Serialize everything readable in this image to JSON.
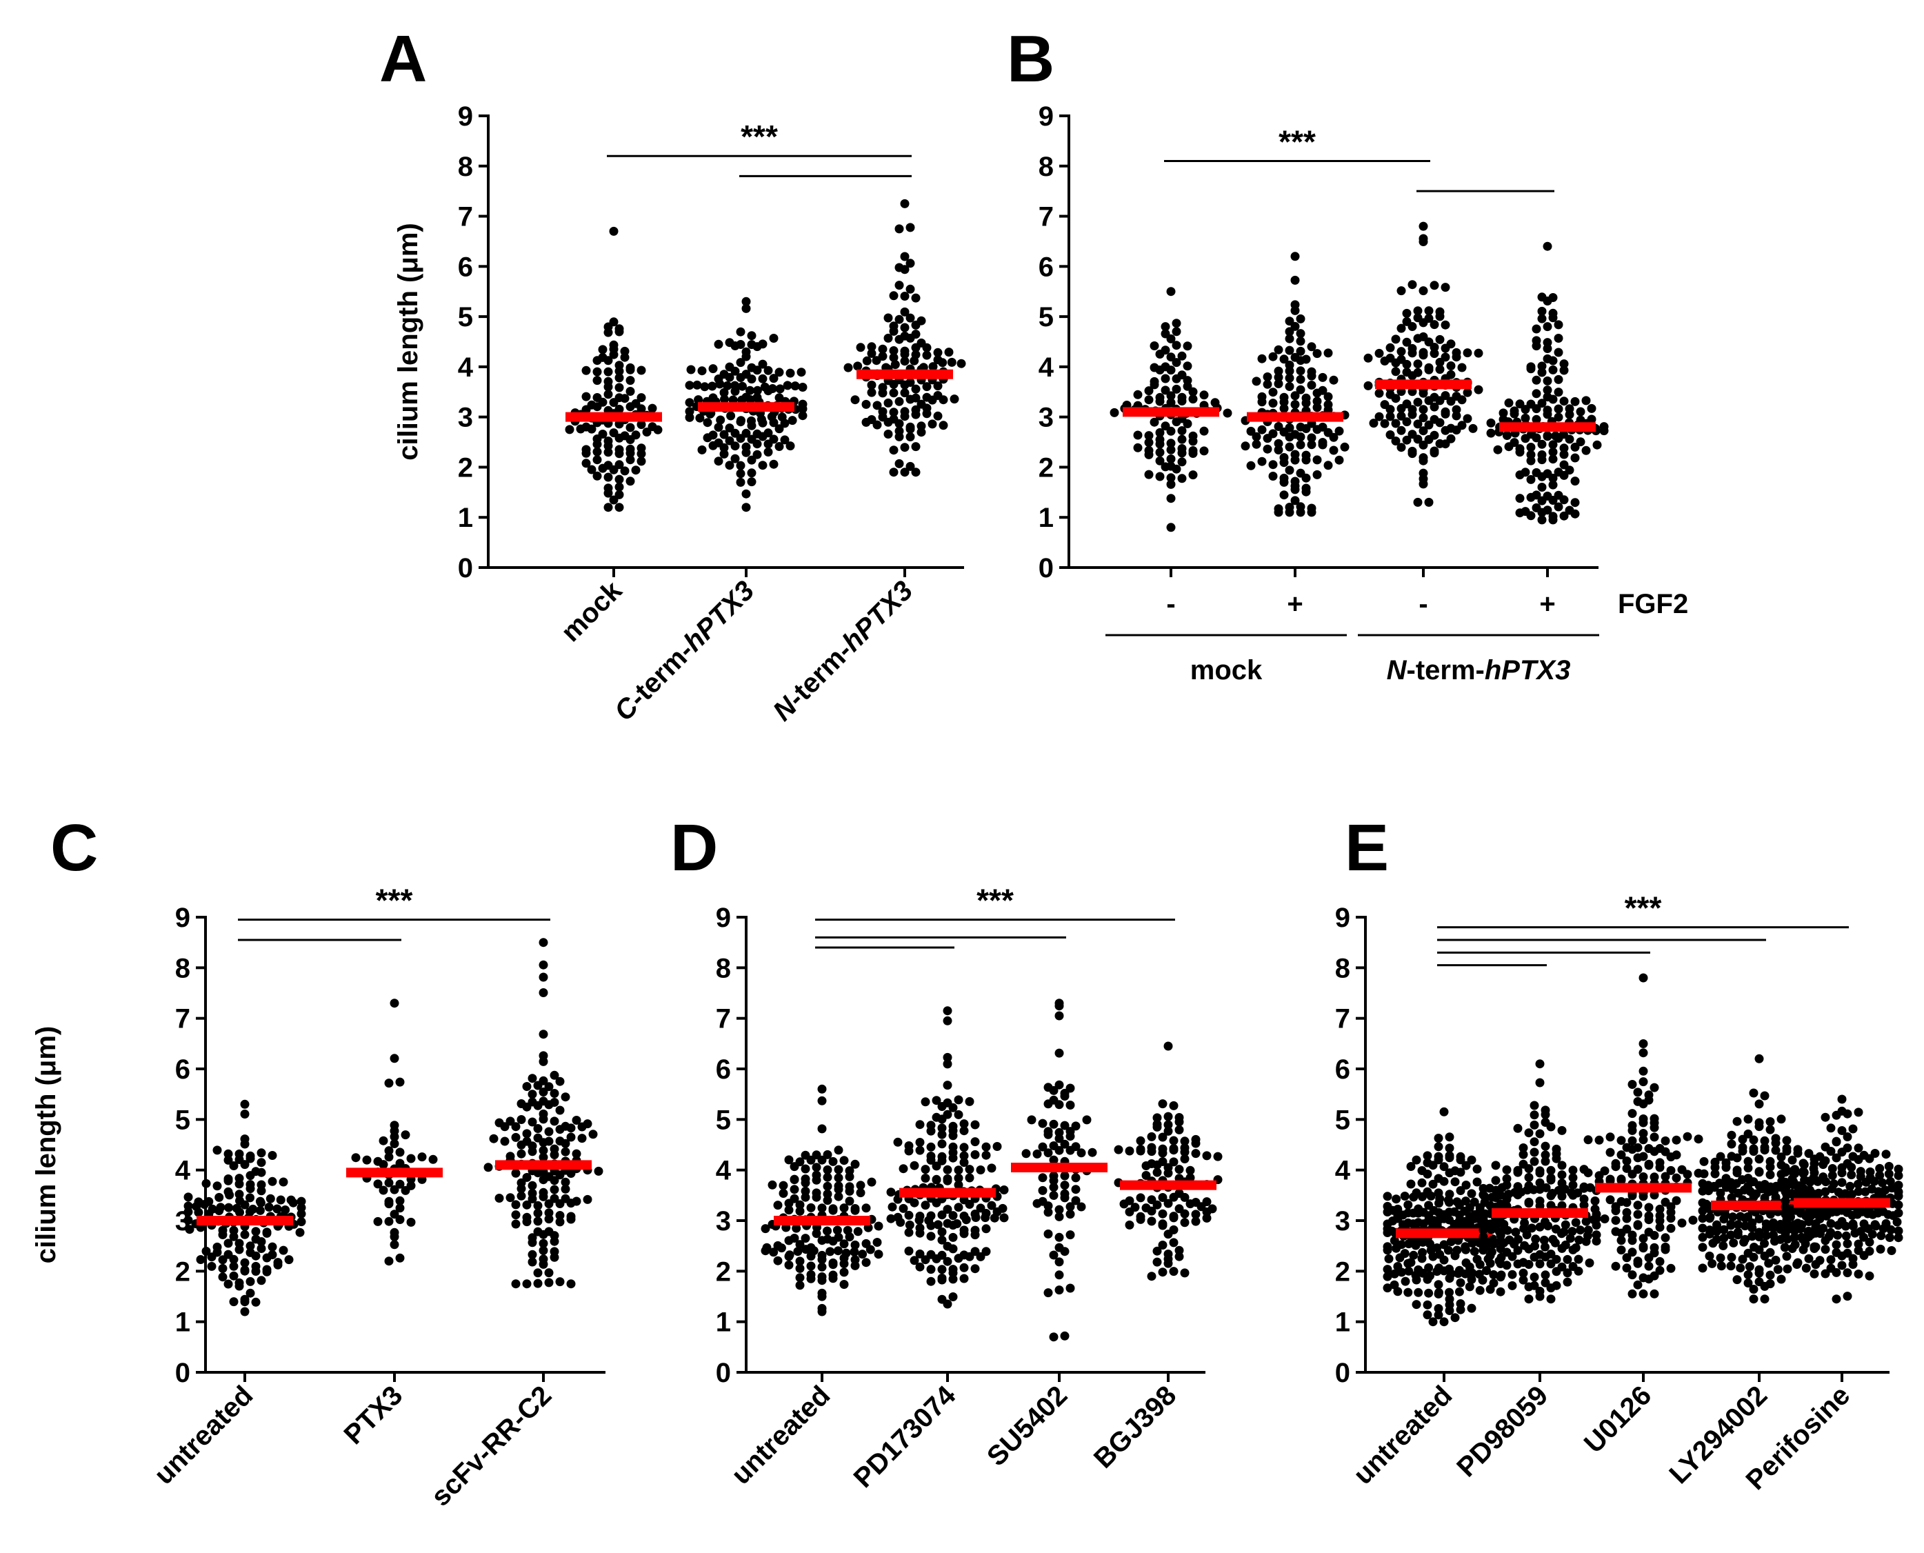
{
  "figure": {
    "colors": {
      "points": "#000000",
      "mean": "#ff0000",
      "axis": "#000000"
    },
    "panels": [
      "A",
      "B",
      "C",
      "D",
      "E"
    ]
  },
  "chart_data": [
    {
      "panel": "A",
      "type": "scatter",
      "ylabel": "cilium length (μm)",
      "ylim": [
        0,
        9
      ],
      "yticks": [
        "0",
        "1",
        "2",
        "3",
        "4",
        "5",
        "6",
        "7",
        "8",
        "9"
      ],
      "categories": [
        {
          "label": [
            {
              "t": "mock",
              "i": false
            }
          ]
        },
        {
          "label": [
            {
              "t": "C",
              "i": true
            },
            {
              "t": "-term-",
              "i": false
            },
            {
              "t": "hPTX3",
              "i": true
            }
          ]
        },
        {
          "label": [
            {
              "t": "N",
              "i": true
            },
            {
              "t": "-term-",
              "i": false
            },
            {
              "t": "hPTX3",
              "i": true
            }
          ]
        }
      ],
      "groups": [
        {
          "n": 110,
          "mean": 3.0,
          "min": 1.2,
          "max": 6.7
        },
        {
          "n": 150,
          "mean": 3.2,
          "min": 1.2,
          "max": 5.3
        },
        {
          "n": 130,
          "mean": 3.85,
          "min": 1.9,
          "max": 7.25
        }
      ],
      "significance": {
        "label": "***",
        "bars": [
          {
            "from": 0,
            "to": 2,
            "y": 8.2
          },
          {
            "from": 1,
            "to": 2,
            "y": 7.8
          }
        ]
      }
    },
    {
      "panel": "B",
      "type": "scatter",
      "ylabel": "",
      "ylim": [
        0,
        9
      ],
      "yticks": [
        "0",
        "1",
        "2",
        "3",
        "4",
        "5",
        "6",
        "7",
        "8",
        "9"
      ],
      "treatment_label": "FGF2",
      "categories": [
        {
          "label": [
            {
              "t": "-",
              "i": false
            }
          ]
        },
        {
          "label": [
            {
              "t": "+",
              "i": false
            }
          ]
        },
        {
          "label": [
            {
              "t": "-",
              "i": false
            }
          ]
        },
        {
          "label": [
            {
              "t": "+",
              "i": false
            }
          ]
        }
      ],
      "bottom_groups": [
        {
          "from": 0,
          "to": 1,
          "label": [
            {
              "t": "mock",
              "i": false
            }
          ]
        },
        {
          "from": 2,
          "to": 3,
          "label": [
            {
              "t": "N",
              "i": true
            },
            {
              "t": "-term-",
              "i": false
            },
            {
              "t": "hPTX3",
              "i": true
            }
          ]
        }
      ],
      "groups": [
        {
          "n": 100,
          "mean": 3.1,
          "min": 0.8,
          "max": 5.5
        },
        {
          "n": 140,
          "mean": 3.0,
          "min": 1.1,
          "max": 6.2
        },
        {
          "n": 150,
          "mean": 3.65,
          "min": 1.3,
          "max": 6.8
        },
        {
          "n": 150,
          "mean": 2.8,
          "min": 0.95,
          "max": 6.4
        }
      ],
      "significance": {
        "label": "***",
        "bars": [
          {
            "from": 0,
            "to": 2,
            "y": 8.1
          },
          {
            "from": 2,
            "to": 3,
            "y": 7.5
          }
        ]
      }
    },
    {
      "panel": "C",
      "type": "scatter",
      "ylabel": "cilium length (μm)",
      "ylim": [
        0,
        9
      ],
      "yticks": [
        "0",
        "1",
        "2",
        "3",
        "4",
        "5",
        "6",
        "7",
        "8",
        "9"
      ],
      "categories": [
        {
          "label": [
            {
              "t": "untreated",
              "i": false
            }
          ]
        },
        {
          "label": [
            {
              "t": "PTX3",
              "i": false
            }
          ]
        },
        {
          "label": [
            {
              "t": "scFv-RR-C2",
              "i": false
            }
          ]
        }
      ],
      "groups": [
        {
          "n": 150,
          "mean": 3.0,
          "min": 1.2,
          "max": 5.3
        },
        {
          "n": 50,
          "mean": 3.95,
          "min": 2.2,
          "max": 7.3
        },
        {
          "n": 150,
          "mean": 4.1,
          "min": 1.75,
          "max": 8.5
        }
      ],
      "significance": {
        "label": "***",
        "bars": [
          {
            "from": 0,
            "to": 2,
            "y": 8.95
          },
          {
            "from": 0,
            "to": 1,
            "y": 8.55
          }
        ]
      }
    },
    {
      "panel": "D",
      "type": "scatter",
      "ylabel": "",
      "ylim": [
        0,
        9
      ],
      "yticks": [
        "0",
        "1",
        "2",
        "3",
        "4",
        "5",
        "6",
        "7",
        "8",
        "9"
      ],
      "categories": [
        {
          "label": [
            {
              "t": "untreated",
              "i": false
            }
          ]
        },
        {
          "label": [
            {
              "t": "PD173074",
              "i": false
            }
          ]
        },
        {
          "label": [
            {
              "t": "SU5402",
              "i": false
            }
          ]
        },
        {
          "label": [
            {
              "t": "BGJ398",
              "i": false
            }
          ]
        }
      ],
      "groups": [
        {
          "n": 150,
          "mean": 3.0,
          "min": 1.2,
          "max": 5.6
        },
        {
          "n": 170,
          "mean": 3.55,
          "min": 1.35,
          "max": 7.15
        },
        {
          "n": 80,
          "mean": 4.05,
          "min": 0.7,
          "max": 7.3
        },
        {
          "n": 110,
          "mean": 3.7,
          "min": 1.9,
          "max": 6.45
        }
      ],
      "significance": {
        "label": "***",
        "bars": [
          {
            "from": 0,
            "to": 3,
            "y": 8.95
          },
          {
            "from": 0,
            "to": 2,
            "y": 8.6
          },
          {
            "from": 0,
            "to": 1,
            "y": 8.4
          }
        ]
      }
    },
    {
      "panel": "E",
      "type": "scatter",
      "ylabel": "",
      "ylim": [
        0,
        9
      ],
      "yticks": [
        "0",
        "1",
        "2",
        "3",
        "4",
        "5",
        "6",
        "7",
        "8",
        "9"
      ],
      "categories": [
        {
          "label": [
            {
              "t": "untreated",
              "i": false
            }
          ]
        },
        {
          "label": [
            {
              "t": "PD98059",
              "i": false
            }
          ]
        },
        {
          "label": [
            {
              "t": "U0126",
              "i": false
            }
          ]
        },
        {
          "label": [
            {
              "t": "LY294002",
              "i": false
            }
          ]
        },
        {
          "label": [
            {
              "t": "Perifosine",
              "i": false
            }
          ]
        }
      ],
      "groups": [
        {
          "n": 260,
          "mean": 2.75,
          "min": 1.0,
          "max": 5.15
        },
        {
          "n": 200,
          "mean": 3.15,
          "min": 1.45,
          "max": 6.1
        },
        {
          "n": 150,
          "mean": 3.65,
          "min": 1.55,
          "max": 7.8
        },
        {
          "n": 260,
          "mean": 3.3,
          "min": 1.45,
          "max": 6.2
        },
        {
          "n": 220,
          "mean": 3.35,
          "min": 1.45,
          "max": 5.4
        }
      ],
      "significance": {
        "label": "***",
        "bars": [
          {
            "from": 0,
            "to": 4,
            "y": 8.8
          },
          {
            "from": 0,
            "to": 3,
            "y": 8.55
          },
          {
            "from": 0,
            "to": 2,
            "y": 8.3
          },
          {
            "from": 0,
            "to": 1,
            "y": 8.05
          }
        ]
      }
    }
  ]
}
